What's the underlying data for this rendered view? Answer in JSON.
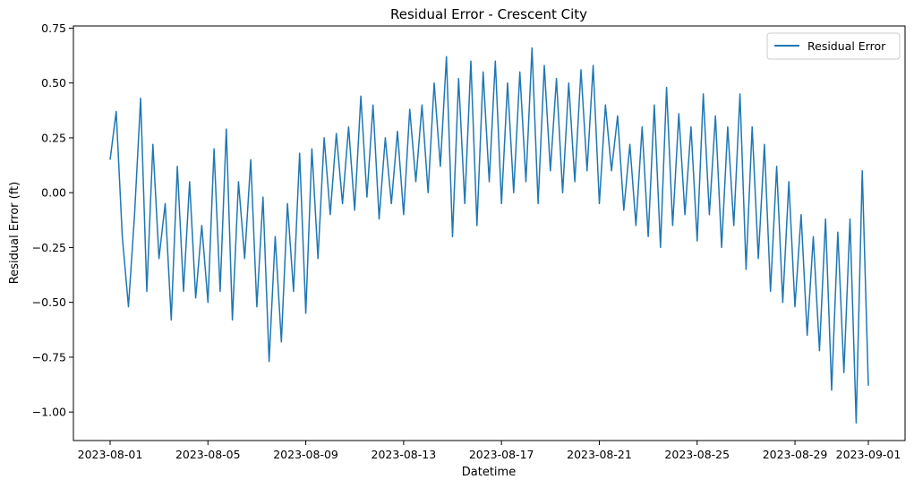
{
  "chart_data": {
    "type": "line",
    "title": "Residual Error - Crescent City",
    "xlabel": "Datetime",
    "ylabel": "Residual Error (ft)",
    "xlim": [
      "2023-07-30T12:00",
      "2023-09-02T12:00"
    ],
    "ylim": [
      -1.13,
      0.76
    ],
    "x_ticks": [
      "2023-08-01",
      "2023-08-05",
      "2023-08-09",
      "2023-08-13",
      "2023-08-17",
      "2023-08-21",
      "2023-08-25",
      "2023-08-29",
      "2023-09-01"
    ],
    "y_ticks": [
      0.75,
      0.5,
      0.25,
      0.0,
      -0.25,
      -0.5,
      -0.75,
      -1.0
    ],
    "y_tick_labels": [
      "0.75",
      "0.50",
      "0.25",
      "0.00",
      "−0.25",
      "−0.50",
      "−0.75",
      "−1.00"
    ],
    "legend": {
      "position": "top-right",
      "entries": [
        "Residual Error"
      ]
    },
    "grid": false,
    "series": [
      {
        "name": "Residual Error",
        "color": "#1f77b4",
        "x": [
          "2023-08-01T00:00",
          "2023-08-01T06:00",
          "2023-08-01T12:00",
          "2023-08-01T18:00",
          "2023-08-02T00:00",
          "2023-08-02T06:00",
          "2023-08-02T12:00",
          "2023-08-02T18:00",
          "2023-08-03T00:00",
          "2023-08-03T06:00",
          "2023-08-03T12:00",
          "2023-08-03T18:00",
          "2023-08-04T00:00",
          "2023-08-04T06:00",
          "2023-08-04T12:00",
          "2023-08-04T18:00",
          "2023-08-05T00:00",
          "2023-08-05T06:00",
          "2023-08-05T12:00",
          "2023-08-05T18:00",
          "2023-08-06T00:00",
          "2023-08-06T06:00",
          "2023-08-06T12:00",
          "2023-08-06T18:00",
          "2023-08-07T00:00",
          "2023-08-07T06:00",
          "2023-08-07T12:00",
          "2023-08-07T18:00",
          "2023-08-08T00:00",
          "2023-08-08T06:00",
          "2023-08-08T12:00",
          "2023-08-08T18:00",
          "2023-08-09T00:00",
          "2023-08-09T06:00",
          "2023-08-09T12:00",
          "2023-08-09T18:00",
          "2023-08-10T00:00",
          "2023-08-10T06:00",
          "2023-08-10T12:00",
          "2023-08-10T18:00",
          "2023-08-11T00:00",
          "2023-08-11T06:00",
          "2023-08-11T12:00",
          "2023-08-11T18:00",
          "2023-08-12T00:00",
          "2023-08-12T06:00",
          "2023-08-12T12:00",
          "2023-08-12T18:00",
          "2023-08-13T00:00",
          "2023-08-13T06:00",
          "2023-08-13T12:00",
          "2023-08-13T18:00",
          "2023-08-14T00:00",
          "2023-08-14T06:00",
          "2023-08-14T12:00",
          "2023-08-14T18:00",
          "2023-08-15T00:00",
          "2023-08-15T06:00",
          "2023-08-15T12:00",
          "2023-08-15T18:00",
          "2023-08-16T00:00",
          "2023-08-16T06:00",
          "2023-08-16T12:00",
          "2023-08-16T18:00",
          "2023-08-17T00:00",
          "2023-08-17T06:00",
          "2023-08-17T12:00",
          "2023-08-17T18:00",
          "2023-08-18T00:00",
          "2023-08-18T06:00",
          "2023-08-18T12:00",
          "2023-08-18T18:00",
          "2023-08-19T00:00",
          "2023-08-19T06:00",
          "2023-08-19T12:00",
          "2023-08-19T18:00",
          "2023-08-20T00:00",
          "2023-08-20T06:00",
          "2023-08-20T12:00",
          "2023-08-20T18:00",
          "2023-08-21T00:00",
          "2023-08-21T06:00",
          "2023-08-21T12:00",
          "2023-08-21T18:00",
          "2023-08-22T00:00",
          "2023-08-22T06:00",
          "2023-08-22T12:00",
          "2023-08-22T18:00",
          "2023-08-23T00:00",
          "2023-08-23T06:00",
          "2023-08-23T12:00",
          "2023-08-23T18:00",
          "2023-08-24T00:00",
          "2023-08-24T06:00",
          "2023-08-24T12:00",
          "2023-08-24T18:00",
          "2023-08-25T00:00",
          "2023-08-25T06:00",
          "2023-08-25T12:00",
          "2023-08-25T18:00",
          "2023-08-26T00:00",
          "2023-08-26T06:00",
          "2023-08-26T12:00",
          "2023-08-26T18:00",
          "2023-08-27T00:00",
          "2023-08-27T06:00",
          "2023-08-27T12:00",
          "2023-08-27T18:00",
          "2023-08-28T00:00",
          "2023-08-28T06:00",
          "2023-08-28T12:00",
          "2023-08-28T18:00",
          "2023-08-29T00:00",
          "2023-08-29T06:00",
          "2023-08-29T12:00",
          "2023-08-29T18:00",
          "2023-08-30T00:00",
          "2023-08-30T06:00",
          "2023-08-30T12:00",
          "2023-08-30T18:00",
          "2023-08-31T00:00",
          "2023-08-31T06:00",
          "2023-08-31T12:00",
          "2023-08-31T18:00",
          "2023-09-01T00:00"
        ],
        "y": [
          0.15,
          0.37,
          -0.2,
          -0.52,
          -0.1,
          0.43,
          -0.45,
          0.22,
          -0.3,
          -0.05,
          -0.58,
          0.12,
          -0.45,
          0.05,
          -0.48,
          -0.15,
          -0.5,
          0.2,
          -0.45,
          0.29,
          -0.58,
          0.05,
          -0.3,
          0.15,
          -0.52,
          -0.02,
          -0.77,
          -0.2,
          -0.68,
          -0.05,
          -0.45,
          0.18,
          -0.55,
          0.2,
          -0.3,
          0.25,
          -0.1,
          0.27,
          -0.05,
          0.3,
          -0.08,
          0.44,
          -0.02,
          0.4,
          -0.12,
          0.25,
          -0.05,
          0.28,
          -0.1,
          0.38,
          0.05,
          0.4,
          0.0,
          0.5,
          0.12,
          0.62,
          -0.2,
          0.52,
          -0.05,
          0.6,
          -0.15,
          0.55,
          0.05,
          0.6,
          -0.05,
          0.5,
          0.0,
          0.55,
          0.05,
          0.66,
          -0.05,
          0.58,
          0.1,
          0.52,
          0.0,
          0.5,
          0.05,
          0.56,
          0.1,
          0.58,
          -0.05,
          0.4,
          0.1,
          0.35,
          -0.08,
          0.22,
          -0.15,
          0.3,
          -0.2,
          0.4,
          -0.25,
          0.48,
          -0.15,
          0.36,
          -0.1,
          0.3,
          -0.22,
          0.45,
          -0.1,
          0.35,
          -0.25,
          0.3,
          -0.15,
          0.45,
          -0.35,
          0.3,
          -0.3,
          0.22,
          -0.45,
          0.12,
          -0.5,
          0.05,
          -0.52,
          -0.1,
          -0.65,
          -0.2,
          -0.72,
          -0.12,
          -0.9,
          -0.18,
          -0.82,
          -0.12,
          -1.05,
          0.1,
          -0.88
        ]
      }
    ]
  }
}
